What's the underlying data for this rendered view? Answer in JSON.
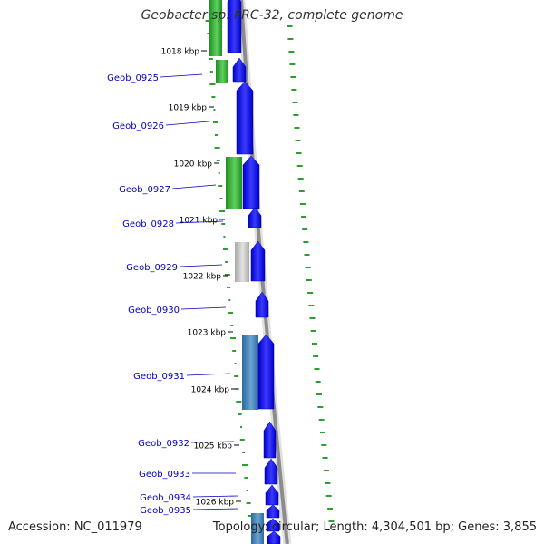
{
  "title": "Geobacter sp. FRC-32, complete genome",
  "footer": {
    "accession": "Accession: NC_011979",
    "stats": "Topology: circular; Length: 4,304,501 bp; Genes: 3,855"
  },
  "colors": {
    "cds_forward": "#0000ff",
    "backbone": "#8c8c8c",
    "label_blue": "#0000bb",
    "gc_green": "#2e9e2e",
    "orthologue_green": "#3cb83c",
    "orthologue_grey": "#c4c4c4",
    "orthologue_steel": "#4a84b8"
  },
  "ticks": [
    "1018 kbp",
    "1019 kbp",
    "1020 kbp",
    "1021 kbp",
    "1022 kbp",
    "1023 kbp",
    "1024 kbp",
    "1025 kbp",
    "1026 kbp"
  ],
  "genes": [
    "Geob_0925",
    "Geob_0926",
    "Geob_0927",
    "Geob_0928",
    "Geob_0929",
    "Geob_0930",
    "Geob_0931",
    "Geob_0932",
    "Geob_0933",
    "Geob_0934",
    "Geob_0935"
  ]
}
